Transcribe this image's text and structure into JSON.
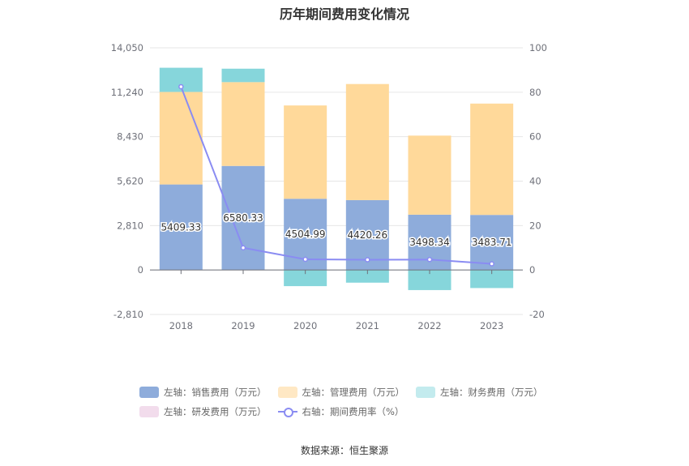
{
  "chart_data": {
    "type": "bar",
    "title": "历年期间费用变化情况",
    "categories": [
      "2018",
      "2019",
      "2020",
      "2021",
      "2022",
      "2023"
    ],
    "left_axis": {
      "ticks": [
        "14,050",
        "11,240",
        "8,430",
        "5,620",
        "2,810",
        "0",
        "-2,810"
      ],
      "ylim": [
        -2810,
        14050
      ]
    },
    "right_axis": {
      "ticks": [
        "100",
        "80",
        "60",
        "40",
        "20",
        "0",
        "-20"
      ],
      "ylim": [
        -20,
        100
      ]
    },
    "series": [
      {
        "name": "左轴：销售费用（万元）",
        "color": "#8eacdb",
        "values": [
          5409.33,
          6580.33,
          4504.99,
          4420.26,
          3498.34,
          3483.71
        ],
        "labels": [
          "5409.33",
          "6580.33",
          "4504.99",
          "4420.26",
          "3498.34",
          "3483.71"
        ]
      },
      {
        "name": "左轴：管理费用（万元）",
        "color": "#ffd99a",
        "values": [
          5850,
          5300,
          5900,
          7340,
          5000,
          7040
        ]
      },
      {
        "name": "左轴：财务费用（万元）",
        "color": "#86d6db",
        "values": [
          1530,
          850,
          -1020,
          -800,
          -1270,
          -1140
        ]
      },
      {
        "name": "左轴：研发费用（万元）",
        "color": "#f2dcec",
        "values": [
          0,
          0,
          0,
          0,
          0,
          0
        ]
      },
      {
        "name": "右轴：期间费用率（%）",
        "color": "#8a8cf2",
        "type": "line",
        "axis": "right",
        "values": [
          82.5,
          10,
          4.8,
          4.6,
          4.7,
          2.8
        ]
      }
    ]
  },
  "source": "数据来源：恒生聚源"
}
